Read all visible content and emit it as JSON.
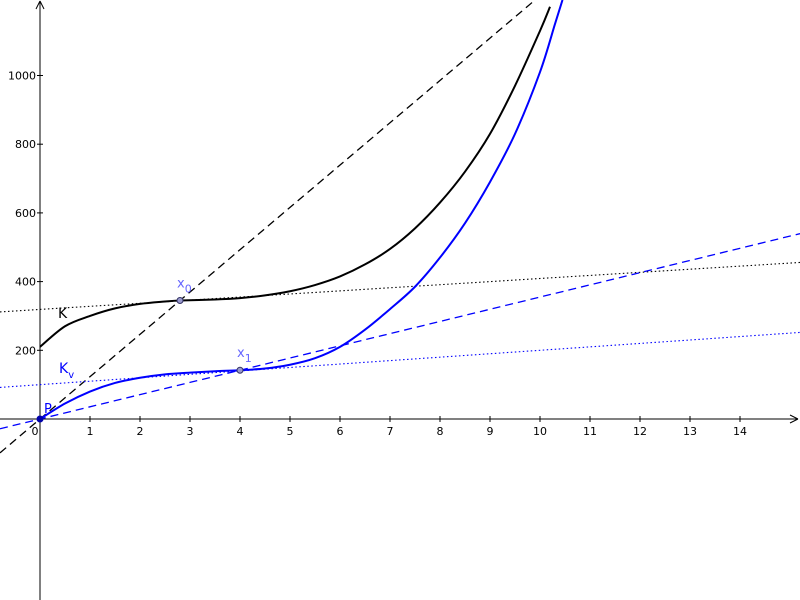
{
  "chart_data": {
    "type": "line",
    "title": "",
    "xlabel": "",
    "ylabel": "",
    "xlim": [
      -0.8,
      15.2
    ],
    "ylim": [
      -180,
      1220
    ],
    "grid": false,
    "x_ticks": [
      "0",
      "1",
      "2",
      "3",
      "4",
      "5",
      "6",
      "7",
      "8",
      "9",
      "10",
      "11",
      "12",
      "13",
      "14"
    ],
    "y_ticks": [
      "200",
      "400",
      "600",
      "800",
      "1000"
    ],
    "colors": {
      "K": "#000000",
      "Kv": "#0000ff",
      "point_label": "#6666ff"
    },
    "curves": {
      "K": {
        "label": "K",
        "points": [
          [
            0,
            210
          ],
          [
            0.5,
            270
          ],
          [
            1,
            300
          ],
          [
            1.5,
            322
          ],
          [
            2,
            335
          ],
          [
            2.5,
            342
          ],
          [
            2.8,
            345
          ],
          [
            3.5,
            348
          ],
          [
            4,
            352
          ],
          [
            4.5,
            360
          ],
          [
            5,
            372
          ],
          [
            5.5,
            390
          ],
          [
            6,
            415
          ],
          [
            6.5,
            450
          ],
          [
            7,
            495
          ],
          [
            7.5,
            555
          ],
          [
            8,
            630
          ],
          [
            8.5,
            720
          ],
          [
            9,
            830
          ],
          [
            9.5,
            970
          ],
          [
            10,
            1130
          ],
          [
            10.2,
            1200
          ]
        ]
      },
      "Kv": {
        "label": "K",
        "label_sub": "v",
        "points": [
          [
            0,
            0
          ],
          [
            0.5,
            45
          ],
          [
            1,
            80
          ],
          [
            1.5,
            105
          ],
          [
            2,
            120
          ],
          [
            2.5,
            130
          ],
          [
            3,
            135
          ],
          [
            3.5,
            139
          ],
          [
            4,
            142
          ],
          [
            4.5,
            147
          ],
          [
            5,
            158
          ],
          [
            5.5,
            177
          ],
          [
            6,
            210
          ],
          [
            6.5,
            260
          ],
          [
            7,
            320
          ],
          [
            7.5,
            385
          ],
          [
            8,
            470
          ],
          [
            8.5,
            570
          ],
          [
            9,
            690
          ],
          [
            9.5,
            830
          ],
          [
            10,
            1010
          ],
          [
            10.3,
            1150
          ],
          [
            10.45,
            1220
          ]
        ]
      }
    },
    "lines": [
      {
        "name": "secant-K",
        "style": "dashed",
        "color": "#000000",
        "slope": 123.2,
        "intercept": 0
      },
      {
        "name": "tangent-K",
        "style": "dotted",
        "color": "#000000",
        "slope": 9,
        "intercept": 319
      },
      {
        "name": "secant-Kv",
        "style": "dashed",
        "color": "#0000ff",
        "slope": 35.5,
        "intercept": 0
      },
      {
        "name": "tangent-Kv",
        "style": "dotted",
        "color": "#0000ff",
        "slope": 10,
        "intercept": 100
      }
    ],
    "marked_points": [
      {
        "label": "x",
        "sub": "0",
        "x": 2.8,
        "y": 345
      },
      {
        "label": "x",
        "sub": "1",
        "x": 4.0,
        "y": 142
      },
      {
        "label": "P",
        "sub": "",
        "x": 0,
        "y": 0
      }
    ]
  }
}
